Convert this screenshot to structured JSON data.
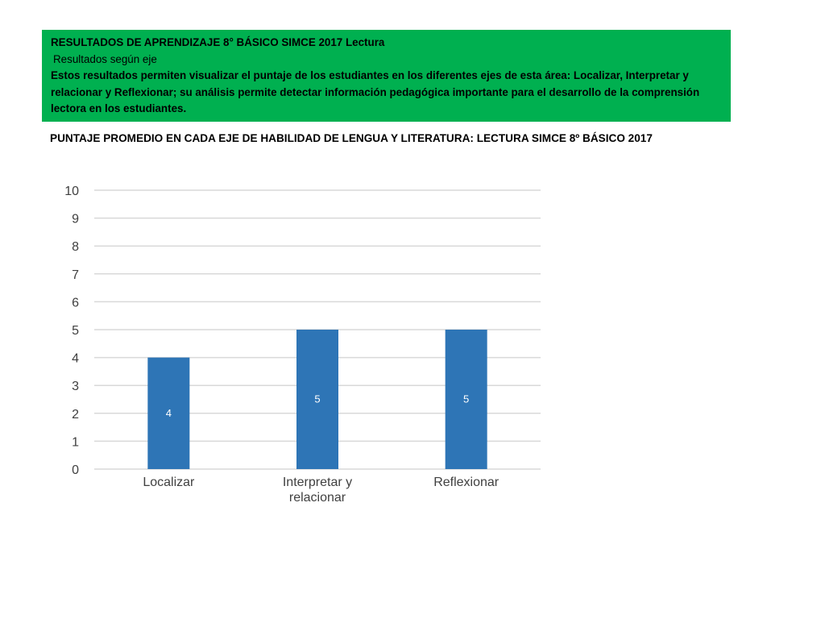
{
  "header": {
    "title": "RESULTADOS DE APRENDIZAJE 8° BÁSICO SIMCE 2017 Lectura",
    "subtitle": "Resultados según eje",
    "description": "Estos resultados permiten visualizar el puntaje de los estudiantes en los diferentes ejes de esta área: Localizar, Interpretar y relacionar y Reflexionar; su análisis permite detectar información pedagógica importante para el desarrollo de la comprensión lectora en los estudiantes.",
    "background_color": "#00b050"
  },
  "chart_title": "PUNTAJE PROMEDIO EN CADA EJE DE HABILIDAD DE LENGUA Y LITERATURA: LECTURA SIMCE 8º BÁSICO 2017",
  "chart_data": {
    "type": "bar",
    "categories": [
      "Localizar",
      "Interpretar y relacionar",
      "Reflexionar"
    ],
    "category_lines": [
      [
        "Localizar"
      ],
      [
        "Interpretar y",
        "relacionar"
      ],
      [
        "Reflexionar"
      ]
    ],
    "values": [
      4,
      5,
      5
    ],
    "data_labels": [
      "4",
      "5",
      "5"
    ],
    "ylim": [
      0,
      10
    ],
    "yticks": [
      "0",
      "1",
      "2",
      "3",
      "4",
      "5",
      "6",
      "7",
      "8",
      "9",
      "10"
    ],
    "grid": true,
    "legend": "none",
    "bar_color": "#2e75b6",
    "grid_color": "#d9d9d9"
  }
}
